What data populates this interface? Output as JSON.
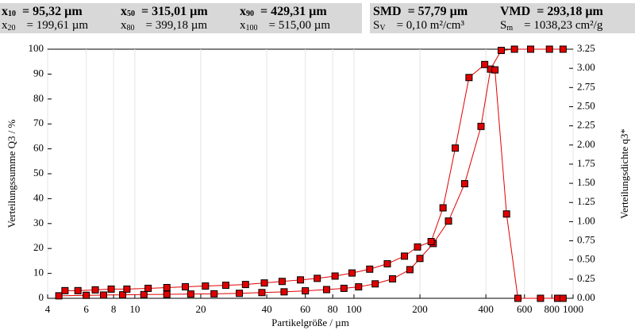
{
  "header": {
    "left": [
      {
        "symbol": "x",
        "sub": "10",
        "value": "= 95,32 µm"
      },
      {
        "symbol": "x",
        "sub": "50",
        "value": "= 315,01 µm"
      },
      {
        "symbol": "x",
        "sub": "90",
        "value": "= 429,31 µm"
      },
      {
        "symbol": "x",
        "sub": "20",
        "value": "= 199,61 µm"
      },
      {
        "symbol": "x",
        "sub": "80",
        "value": "= 399,18 µm"
      },
      {
        "symbol": "x",
        "sub": "100",
        "value": "= 515,00 µm"
      }
    ],
    "right": [
      {
        "symbol": "SMD",
        "sub": "",
        "value": "= 57,79 µm"
      },
      {
        "symbol": "VMD",
        "sub": "",
        "value": "= 293,18 µm"
      },
      {
        "symbol": "S",
        "sub": "V",
        "value": "= 0,10 m²/cm³"
      },
      {
        "symbol": "S",
        "sub": "m",
        "value": "= 1038,23 cm²/g"
      }
    ]
  },
  "chart_data": {
    "type": "scatter",
    "xlabel": "Partikelgröße / µm",
    "ylabel": "Verteilungssumme Q3 / %",
    "y2label": "Verteilungsdichte q3*",
    "xlog": true,
    "grid": true,
    "xlim": [
      4,
      1000
    ],
    "xticks": [
      4,
      6,
      8,
      10,
      20,
      40,
      60,
      80,
      100,
      200,
      400,
      600,
      800,
      1000
    ],
    "ylim": [
      0,
      100
    ],
    "yticks": [
      0,
      10,
      20,
      30,
      40,
      50,
      60,
      70,
      80,
      90,
      100
    ],
    "y2lim": [
      0,
      3.25
    ],
    "y2ticks": [
      {
        "value": 0,
        "label": "0.00"
      },
      {
        "value": 0.25,
        "label": "0.25"
      },
      {
        "value": 0.5,
        "label": "0.50"
      },
      {
        "value": 0.75,
        "label": "0.75"
      },
      {
        "value": 1,
        "label": "1.00"
      },
      {
        "value": 1.25,
        "label": "1.25"
      },
      {
        "value": 1.5,
        "label": "1.50"
      },
      {
        "value": 1.75,
        "label": "1.75"
      },
      {
        "value": 2,
        "label": "2.00"
      },
      {
        "value": 2.25,
        "label": "2.25"
      },
      {
        "value": 2.5,
        "label": "2.50"
      },
      {
        "value": 2.75,
        "label": "2.75"
      },
      {
        "value": 3,
        "label": "3.00"
      },
      {
        "value": 3.25,
        "label": "3.25"
      }
    ],
    "series": [
      {
        "color": "#e00000",
        "x": [
          4.5,
          6,
          7.2,
          8.8,
          11,
          14,
          18,
          23,
          30,
          38,
          48,
          60,
          75,
          90,
          105,
          125,
          150,
          180,
          200,
          230,
          270,
          320,
          380,
          420,
          470,
          540,
          640,
          780,
          900
        ],
        "values": [
          1.0,
          1.2,
          1.3,
          1.4,
          1.5,
          1.6,
          1.7,
          1.8,
          2.0,
          2.3,
          2.6,
          3.0,
          3.5,
          4.0,
          4.6,
          5.8,
          7.8,
          11.5,
          16,
          22,
          31,
          46,
          69,
          92,
          99.5,
          100,
          100,
          100,
          100
        ]
      },
      {
        "color": "#e00000",
        "axis": "y2",
        "x": [
          4.8,
          5.5,
          6.6,
          7.8,
          9.2,
          11.5,
          14,
          17,
          21,
          26,
          32,
          39,
          47,
          57,
          68,
          82,
          98,
          118,
          142,
          170,
          195,
          225,
          255,
          290,
          335,
          395,
          440,
          497,
          560,
          710,
          850,
          900
        ],
        "values": [
          0.1,
          0.1,
          0.11,
          0.12,
          0.12,
          0.13,
          0.14,
          0.15,
          0.16,
          0.17,
          0.18,
          0.2,
          0.22,
          0.24,
          0.26,
          0.29,
          0.33,
          0.38,
          0.45,
          0.55,
          0.67,
          0.74,
          1.18,
          1.96,
          2.88,
          3.05,
          2.98,
          1.1,
          0,
          0,
          0,
          0
        ]
      }
    ]
  }
}
